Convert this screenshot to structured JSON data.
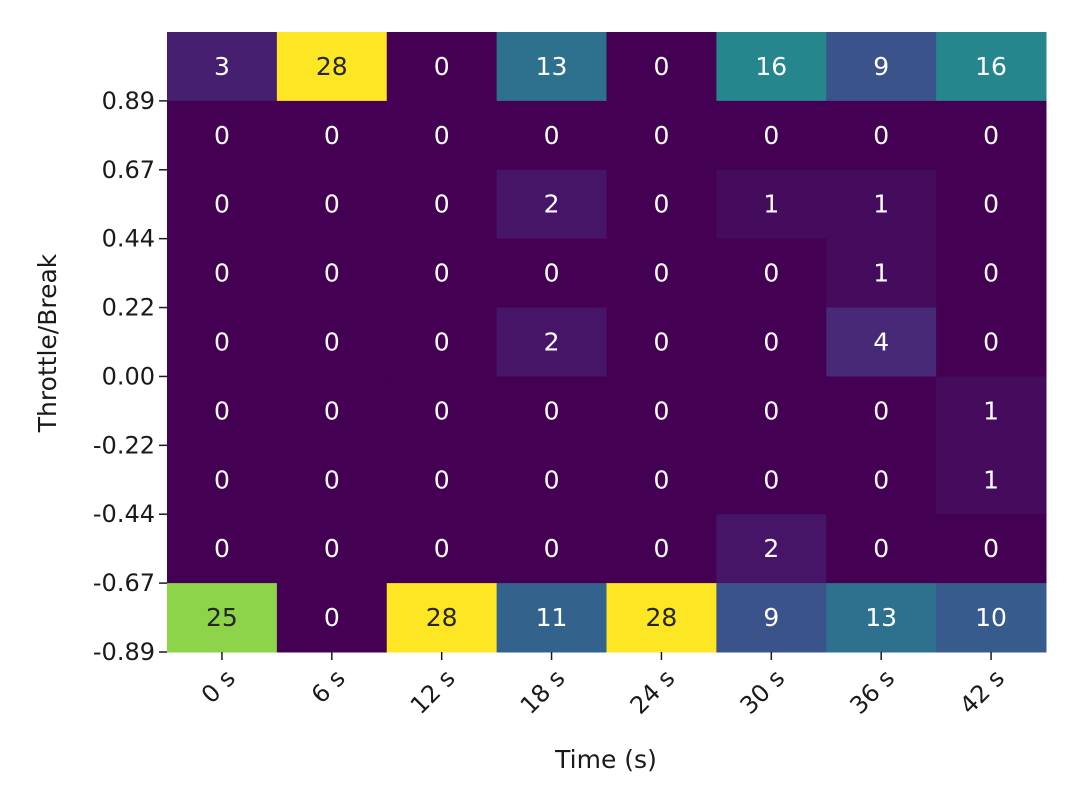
{
  "chart_data": {
    "type": "heatmap",
    "title": "",
    "xlabel": "Time (s)",
    "ylabel": "Throttle/Break",
    "x_tick_labels": [
      "0 s",
      "6 s",
      "12 s",
      "18 s",
      "24 s",
      "30 s",
      "36 s",
      "42 s"
    ],
    "y_tick_labels": [
      "0.89",
      "0.67",
      "0.44",
      "0.22",
      "0.00",
      "-0.22",
      "-0.44",
      "-0.67",
      "-0.89"
    ],
    "rows": [
      [
        3,
        28,
        0,
        13,
        0,
        16,
        9,
        16
      ],
      [
        0,
        0,
        0,
        0,
        0,
        0,
        0,
        0
      ],
      [
        0,
        0,
        0,
        2,
        0,
        1,
        1,
        0
      ],
      [
        0,
        0,
        0,
        0,
        0,
        0,
        1,
        0
      ],
      [
        0,
        0,
        0,
        2,
        0,
        0,
        4,
        0
      ],
      [
        0,
        0,
        0,
        0,
        0,
        0,
        0,
        1
      ],
      [
        0,
        0,
        0,
        0,
        0,
        0,
        0,
        1
      ],
      [
        0,
        0,
        0,
        0,
        0,
        2,
        0,
        0
      ],
      [
        25,
        0,
        28,
        11,
        28,
        9,
        13,
        10
      ]
    ],
    "value_range": [
      0,
      28
    ],
    "colormap": "viridis",
    "annotate_cells": true,
    "grid": false,
    "legend": "none"
  }
}
